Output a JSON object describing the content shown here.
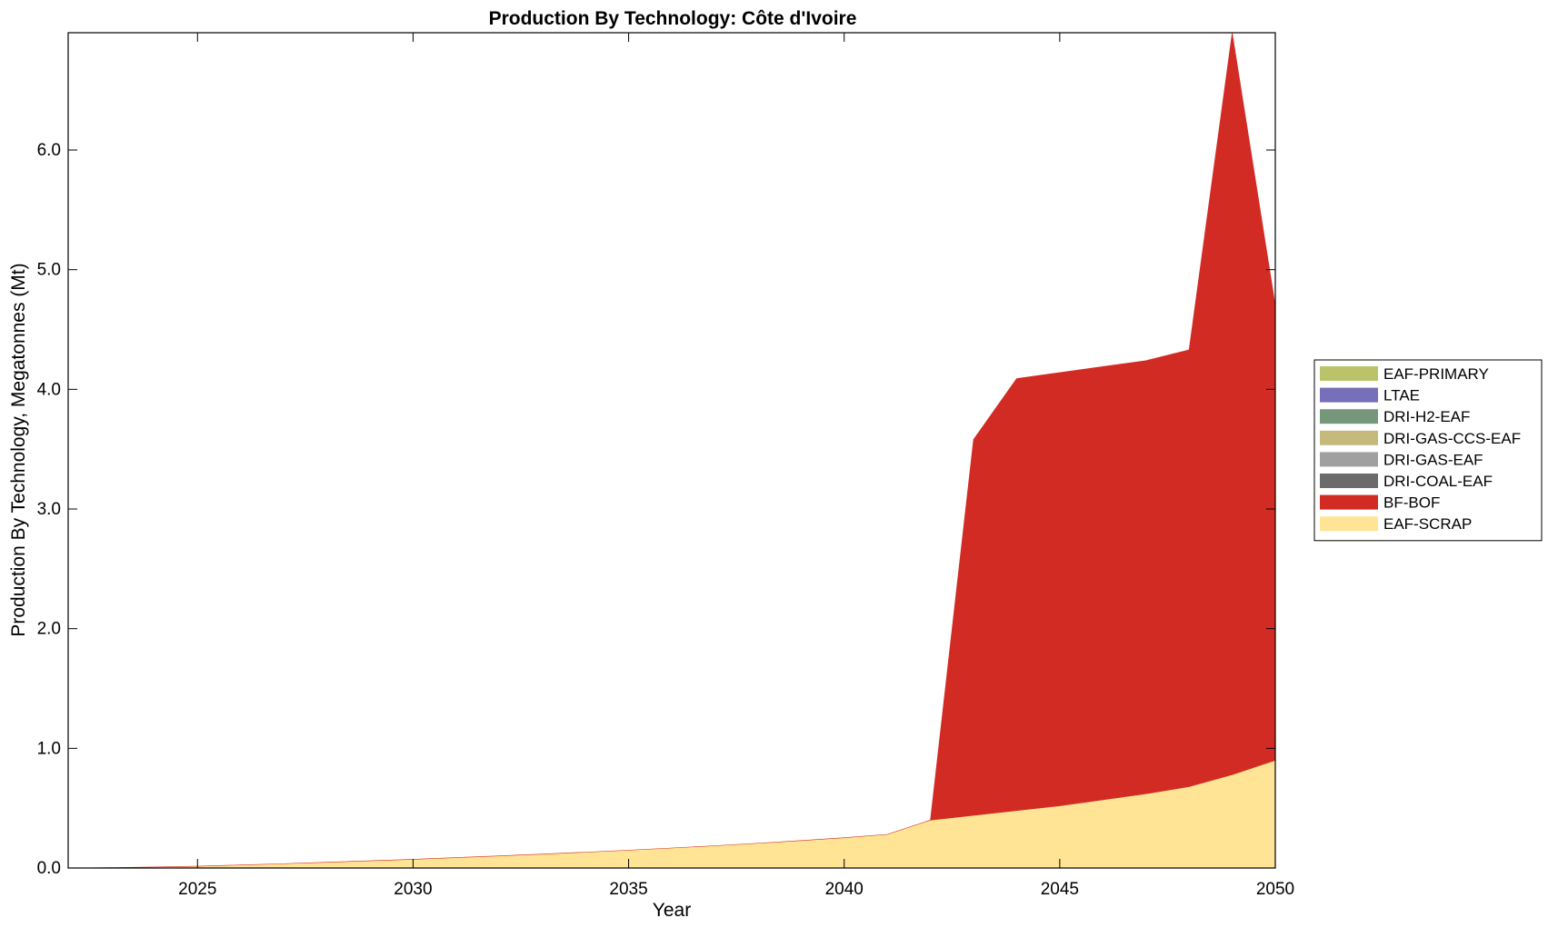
{
  "chart_data": {
    "type": "area",
    "stacked": true,
    "title": "Production By Technology: Côte d'Ivoire",
    "xlabel": "Year",
    "ylabel": "Production By Technology, Megatonnes (Mt)",
    "xlim": [
      2022,
      2050
    ],
    "ylim": [
      0,
      6.98
    ],
    "xticks": [
      2025,
      2030,
      2035,
      2040,
      2045,
      2050
    ],
    "xtick_labels": [
      "2025",
      "2030",
      "2035",
      "2040",
      "2045",
      "2050"
    ],
    "yticks": [
      0,
      1,
      2,
      3,
      4,
      5,
      6
    ],
    "ytick_labels": [
      "0.0",
      "1.0",
      "2.0",
      "3.0",
      "4.0",
      "5.0",
      "6.0"
    ],
    "grid": false,
    "legend_position": "right",
    "x": [
      2022,
      2023,
      2024,
      2025,
      2026,
      2027,
      2028,
      2029,
      2030,
      2031,
      2032,
      2033,
      2034,
      2035,
      2036,
      2037,
      2038,
      2039,
      2040,
      2041,
      2042,
      2043,
      2044,
      2045,
      2046,
      2047,
      2048,
      2049,
      2050
    ],
    "series": [
      {
        "name": "EAF-SCRAP",
        "color": "#ffe495",
        "values": [
          0.0,
          0.003,
          0.008,
          0.015,
          0.025,
          0.036,
          0.048,
          0.06,
          0.073,
          0.087,
          0.101,
          0.116,
          0.132,
          0.149,
          0.167,
          0.186,
          0.207,
          0.229,
          0.253,
          0.281,
          0.4,
          0.44,
          0.48,
          0.52,
          0.57,
          0.62,
          0.68,
          0.78,
          0.9
        ]
      },
      {
        "name": "BF-BOF",
        "color": "#d22b24",
        "values": [
          0,
          0,
          0,
          0,
          0,
          0,
          0,
          0,
          0,
          0,
          0,
          0,
          0,
          0,
          0,
          0,
          0,
          0,
          0,
          0,
          0,
          3.14,
          3.61,
          3.62,
          3.62,
          3.62,
          3.65,
          6.2,
          3.8
        ]
      },
      {
        "name": "DRI-COAL-EAF",
        "color": "#6b6b6b",
        "values": [
          0,
          0,
          0,
          0,
          0,
          0,
          0,
          0,
          0,
          0,
          0,
          0,
          0,
          0,
          0,
          0,
          0,
          0,
          0,
          0,
          0,
          0,
          0,
          0,
          0,
          0,
          0,
          0,
          0
        ]
      },
      {
        "name": "DRI-GAS-EAF",
        "color": "#a0a0a0",
        "values": [
          0,
          0,
          0,
          0,
          0,
          0,
          0,
          0,
          0,
          0,
          0,
          0,
          0,
          0,
          0,
          0,
          0,
          0,
          0,
          0,
          0,
          0,
          0,
          0,
          0,
          0,
          0,
          0,
          0
        ]
      },
      {
        "name": "DRI-GAS-CCS-EAF",
        "color": "#c6b97c",
        "values": [
          0,
          0,
          0,
          0,
          0,
          0,
          0,
          0,
          0,
          0,
          0,
          0,
          0,
          0,
          0,
          0,
          0,
          0,
          0,
          0,
          0,
          0,
          0,
          0,
          0,
          0,
          0,
          0,
          0
        ]
      },
      {
        "name": "DRI-H2-EAF",
        "color": "#76977b",
        "values": [
          0,
          0,
          0,
          0,
          0,
          0,
          0,
          0,
          0,
          0,
          0,
          0,
          0,
          0,
          0,
          0,
          0,
          0,
          0,
          0,
          0,
          0,
          0,
          0,
          0,
          0,
          0,
          0,
          0
        ]
      },
      {
        "name": "LTAE",
        "color": "#7770b8",
        "values": [
          0,
          0,
          0,
          0,
          0,
          0,
          0,
          0,
          0,
          0,
          0,
          0,
          0,
          0,
          0,
          0,
          0,
          0,
          0,
          0,
          0,
          0,
          0,
          0,
          0,
          0,
          0,
          0,
          0
        ]
      },
      {
        "name": "EAF-PRIMARY",
        "color": "#bbc36a",
        "values": [
          0,
          0,
          0,
          0,
          0,
          0,
          0,
          0,
          0,
          0,
          0,
          0,
          0,
          0,
          0,
          0,
          0,
          0,
          0,
          0,
          0,
          0,
          0,
          0,
          0,
          0,
          0,
          0,
          0
        ]
      }
    ],
    "legend_order": [
      "EAF-PRIMARY",
      "LTAE",
      "DRI-H2-EAF",
      "DRI-GAS-CCS-EAF",
      "DRI-GAS-EAF",
      "DRI-COAL-EAF",
      "BF-BOF",
      "EAF-SCRAP"
    ]
  }
}
